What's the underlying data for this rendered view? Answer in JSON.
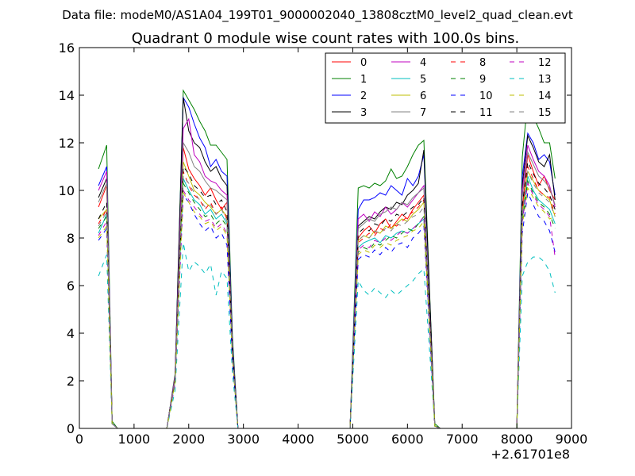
{
  "chart_data": {
    "type": "line",
    "suptitle": "Data file: modeM0/AS1A04_199T01_9000002040_13808cztM0_level2_quad_clean.evt",
    "title": "Quadrant 0 module wise count rates with 100.0s bins.",
    "xlabel": "",
    "ylabel": "",
    "x_offset_label": "+2.61701e8",
    "xlim": [
      0,
      9000
    ],
    "ylim": [
      0,
      16
    ],
    "xticks": [
      0,
      1000,
      2000,
      3000,
      4000,
      5000,
      6000,
      7000,
      8000,
      9000
    ],
    "yticks": [
      0,
      2,
      4,
      6,
      8,
      10,
      12,
      14,
      16
    ],
    "legend_position": "top-right",
    "series": [
      {
        "name": "0",
        "color": "#ff0000",
        "style": "solid",
        "values": [
          9.3,
          10.2,
          0.2,
          0,
          0,
          0,
          0,
          0,
          2.1,
          11.8,
          10.9,
          10.5,
          10.2,
          9.8,
          10.1,
          9.6,
          9.2,
          9.5,
          3.2,
          0,
          0,
          0,
          0,
          0,
          0,
          0,
          0,
          0,
          0,
          0,
          0,
          0,
          0,
          8.0,
          8.3,
          8.5,
          8.2,
          8.6,
          8.8,
          8.4,
          8.7,
          9.0,
          8.8,
          9.2,
          9.5,
          9.8,
          4.8,
          0.1,
          0,
          0,
          0,
          0,
          0,
          0,
          0,
          9.2,
          11.5,
          10.8,
          10.2,
          10.6,
          10.0,
          9.6
        ]
      },
      {
        "name": "1",
        "color": "#008000",
        "style": "solid",
        "values": [
          10.9,
          11.9,
          0.3,
          0,
          0,
          0,
          0,
          0,
          2.3,
          14.2,
          13.8,
          13.4,
          12.9,
          12.5,
          11.9,
          11.9,
          11.6,
          11.3,
          3.8,
          0,
          0,
          0,
          0,
          0,
          0,
          0,
          0,
          0,
          0,
          0,
          0,
          0,
          0,
          10.1,
          10.2,
          10.1,
          10.3,
          10.2,
          10.4,
          10.9,
          10.5,
          10.6,
          11.0,
          11.5,
          11.9,
          12.1,
          6.0,
          0.2,
          0,
          0,
          0,
          0,
          0,
          0,
          0,
          11.4,
          13.8,
          13.1,
          12.6,
          12.0,
          12.0,
          10.5
        ]
      },
      {
        "name": "2",
        "color": "#0000ff",
        "style": "solid",
        "values": [
          10.2,
          11.0,
          0.2,
          0,
          0,
          0,
          0,
          0,
          2.2,
          13.9,
          13.5,
          12.8,
          12.2,
          11.8,
          11.0,
          11.3,
          10.8,
          10.6,
          3.6,
          0,
          0,
          0,
          0,
          0,
          0,
          0,
          0,
          0,
          0,
          0,
          0,
          0,
          0,
          9.2,
          9.6,
          9.6,
          9.7,
          9.9,
          9.8,
          10.2,
          10.0,
          9.8,
          10.5,
          10.2,
          10.6,
          11.5,
          5.8,
          0.1,
          0,
          0,
          0,
          0,
          0,
          0,
          0,
          10.6,
          12.4,
          12.0,
          11.3,
          11.5,
          11.2,
          9.8
        ]
      },
      {
        "name": "3",
        "color": "#000000",
        "style": "solid",
        "values": [
          9.7,
          10.5,
          0.2,
          0,
          0,
          0,
          0,
          0,
          2.2,
          13.9,
          12.5,
          12.0,
          11.8,
          11.2,
          10.8,
          11.0,
          10.5,
          10.2,
          3.5,
          0,
          0,
          0,
          0,
          0,
          0,
          0,
          0,
          0,
          0,
          0,
          0,
          0,
          0,
          8.5,
          8.7,
          8.9,
          8.8,
          9.1,
          9.3,
          9.2,
          9.5,
          9.4,
          9.8,
          10.0,
          10.3,
          11.7,
          5.9,
          0.1,
          0,
          0,
          0,
          0,
          0,
          0,
          0,
          10.2,
          12.3,
          11.8,
          11.2,
          11.0,
          11.5,
          9.6
        ]
      },
      {
        "name": "4",
        "color": "#bf00bf",
        "style": "solid",
        "values": [
          10.0,
          10.8,
          0.2,
          0,
          0,
          0,
          0,
          0,
          2.2,
          12.6,
          13.0,
          11.5,
          11.2,
          10.6,
          10.4,
          10.3,
          10.0,
          9.8,
          3.3,
          0,
          0,
          0,
          0,
          0,
          0,
          0,
          0,
          0,
          0,
          0,
          0,
          0,
          0,
          8.8,
          9.0,
          8.7,
          9.1,
          8.9,
          9.3,
          9.0,
          9.2,
          9.5,
          9.3,
          9.6,
          9.9,
          10.2,
          5.1,
          0.1,
          0,
          0,
          0,
          0,
          0,
          0,
          0,
          10.0,
          11.9,
          11.3,
          10.8,
          10.6,
          10.2,
          9.3
        ]
      },
      {
        "name": "5",
        "color": "#00bfbf",
        "style": "solid",
        "values": [
          8.2,
          9.0,
          0.2,
          0,
          0,
          0,
          0,
          0,
          2.0,
          10.5,
          10.0,
          9.6,
          9.4,
          9.0,
          9.2,
          8.8,
          9.0,
          8.6,
          3.0,
          0,
          0,
          0,
          0,
          0,
          0,
          0,
          0,
          0,
          0,
          0,
          0,
          0,
          0,
          7.6,
          7.8,
          7.9,
          8.0,
          7.8,
          8.1,
          8.0,
          8.2,
          8.3,
          8.2,
          8.4,
          8.6,
          8.8,
          4.4,
          0.1,
          0,
          0,
          0,
          0,
          0,
          0,
          0,
          8.8,
          10.6,
          10.0,
          9.6,
          9.4,
          9.2,
          8.6
        ]
      },
      {
        "name": "6",
        "color": "#bfbf00",
        "style": "solid",
        "values": [
          8.8,
          9.2,
          0.2,
          0,
          0,
          0,
          0,
          0,
          2.0,
          11.2,
          10.6,
          10.0,
          9.8,
          9.5,
          9.3,
          9.0,
          9.2,
          8.9,
          3.1,
          0,
          0,
          0,
          0,
          0,
          0,
          0,
          0,
          0,
          0,
          0,
          0,
          0,
          0,
          7.9,
          8.1,
          8.0,
          8.3,
          8.2,
          8.5,
          8.4,
          8.6,
          8.8,
          8.7,
          9.0,
          9.2,
          9.5,
          4.7,
          0.1,
          0,
          0,
          0,
          0,
          0,
          0,
          0,
          9.0,
          10.8,
          10.4,
          10.0,
          9.8,
          9.6,
          8.9
        ]
      },
      {
        "name": "7",
        "color": "#808080",
        "style": "solid",
        "values": [
          9.5,
          10.3,
          0.2,
          0,
          0,
          0,
          0,
          0,
          2.1,
          12.0,
          11.6,
          11.0,
          10.8,
          10.4,
          10.1,
          10.0,
          9.8,
          9.6,
          3.3,
          0,
          0,
          0,
          0,
          0,
          0,
          0,
          0,
          0,
          0,
          0,
          0,
          0,
          0,
          8.4,
          8.6,
          8.8,
          8.7,
          9.0,
          9.1,
          9.3,
          9.2,
          9.5,
          9.4,
          9.7,
          9.9,
          10.1,
          5.0,
          0.1,
          0,
          0,
          0,
          0,
          0,
          0,
          0,
          9.7,
          11.6,
          11.1,
          10.6,
          10.4,
          10.1,
          9.4
        ]
      },
      {
        "name": "8",
        "color": "#ff0000",
        "style": "dashed",
        "values": [
          8.6,
          9.2,
          0.2,
          0,
          0,
          0,
          0,
          0,
          2.0,
          10.8,
          10.2,
          9.8,
          9.6,
          9.2,
          9.5,
          9.0,
          9.3,
          8.8,
          3.1,
          0,
          0,
          0,
          0,
          0,
          0,
          0,
          0,
          0,
          0,
          0,
          0,
          0,
          0,
          7.8,
          8.0,
          8.2,
          8.1,
          8.4,
          8.3,
          8.6,
          8.5,
          8.7,
          8.9,
          9.1,
          9.3,
          9.6,
          4.8,
          0.1,
          0,
          0,
          0,
          0,
          0,
          0,
          0,
          9.1,
          11.0,
          10.5,
          10.0,
          9.8,
          9.7,
          9.0
        ]
      },
      {
        "name": "9",
        "color": "#008000",
        "style": "dashed",
        "values": [
          8.4,
          8.9,
          0.2,
          0,
          0,
          0,
          0,
          0,
          2.0,
          10.3,
          9.9,
          9.5,
          9.2,
          8.9,
          9.0,
          8.6,
          8.8,
          8.5,
          3.0,
          0,
          0,
          0,
          0,
          0,
          0,
          0,
          0,
          0,
          0,
          0,
          0,
          0,
          0,
          7.4,
          7.6,
          7.5,
          7.8,
          7.7,
          7.9,
          8.1,
          8.0,
          8.2,
          8.4,
          8.3,
          8.6,
          8.9,
          4.4,
          0.1,
          0,
          0,
          0,
          0,
          0,
          0,
          0,
          8.6,
          10.4,
          9.9,
          9.5,
          9.3,
          9.0,
          8.4
        ]
      },
      {
        "name": "10",
        "color": "#0000ff",
        "style": "dashed",
        "values": [
          7.9,
          8.4,
          0.2,
          0,
          0,
          0,
          0,
          0,
          1.9,
          9.8,
          9.5,
          9.0,
          8.6,
          8.3,
          8.5,
          8.0,
          8.2,
          7.7,
          2.8,
          0,
          0,
          0,
          0,
          0,
          0,
          0,
          0,
          0,
          0,
          0,
          0,
          0,
          0,
          7.1,
          7.3,
          7.2,
          7.5,
          7.3,
          7.6,
          7.4,
          7.7,
          7.8,
          7.6,
          8.0,
          8.2,
          8.5,
          4.2,
          0.1,
          0,
          0,
          0,
          0,
          0,
          0,
          0,
          8.2,
          9.9,
          9.4,
          8.9,
          8.7,
          8.3,
          7.4
        ]
      },
      {
        "name": "11",
        "color": "#000000",
        "style": "dashed",
        "values": [
          8.8,
          9.5,
          0.2,
          0,
          0,
          0,
          0,
          0,
          2.0,
          11.0,
          10.7,
          10.2,
          10.0,
          9.7,
          9.8,
          9.4,
          9.6,
          9.1,
          3.2,
          0,
          0,
          0,
          0,
          0,
          0,
          0,
          0,
          0,
          0,
          0,
          0,
          0,
          0,
          8.2,
          8.4,
          8.3,
          8.6,
          8.5,
          8.8,
          8.7,
          9.0,
          8.9,
          9.1,
          9.3,
          9.4,
          9.7,
          4.9,
          0.1,
          0,
          0,
          0,
          0,
          0,
          0,
          0,
          9.4,
          11.2,
          10.7,
          10.3,
          10.1,
          9.8,
          9.2
        ]
      },
      {
        "name": "12",
        "color": "#bf00bf",
        "style": "dashed",
        "values": [
          8.1,
          8.7,
          0.2,
          0,
          0,
          0,
          0,
          0,
          1.9,
          10.0,
          9.6,
          9.3,
          9.0,
          8.7,
          8.8,
          8.4,
          8.6,
          8.2,
          2.9,
          0,
          0,
          0,
          0,
          0,
          0,
          0,
          0,
          0,
          0,
          0,
          0,
          0,
          0,
          7.5,
          7.7,
          7.6,
          7.9,
          7.8,
          8.0,
          7.9,
          8.1,
          8.3,
          8.2,
          8.4,
          8.6,
          8.9,
          4.5,
          0.1,
          0,
          0,
          0,
          0,
          0,
          0,
          0,
          8.7,
          10.3,
          9.8,
          9.4,
          9.2,
          8.9,
          7.2
        ]
      },
      {
        "name": "13",
        "color": "#00bfbf",
        "style": "dashed",
        "values": [
          6.4,
          7.3,
          0.2,
          0,
          0,
          0,
          0,
          0,
          1.6,
          7.8,
          6.6,
          7.0,
          6.8,
          6.5,
          6.9,
          5.6,
          6.6,
          6.3,
          2.3,
          0,
          0,
          0,
          0,
          0,
          0,
          0,
          0,
          0,
          0,
          0,
          0,
          0,
          0,
          6.2,
          5.8,
          5.6,
          5.9,
          5.7,
          5.5,
          5.8,
          5.6,
          5.8,
          6.0,
          6.2,
          6.5,
          6.7,
          3.4,
          0.1,
          0,
          0,
          0,
          0,
          0,
          0,
          0,
          6.4,
          7.0,
          7.2,
          7.2,
          7.0,
          6.6,
          5.7
        ]
      },
      {
        "name": "14",
        "color": "#bfbf00",
        "style": "dashed",
        "values": [
          8.0,
          8.5,
          0.2,
          0,
          0,
          0,
          0,
          0,
          1.9,
          9.9,
          9.5,
          9.1,
          8.9,
          8.6,
          8.7,
          8.3,
          8.5,
          8.1,
          2.9,
          0,
          0,
          0,
          0,
          0,
          0,
          0,
          0,
          0,
          0,
          0,
          0,
          0,
          0,
          7.3,
          7.5,
          7.4,
          7.7,
          7.6,
          7.8,
          7.7,
          7.9,
          8.0,
          8.1,
          8.3,
          8.4,
          8.7,
          4.4,
          0.1,
          0,
          0,
          0,
          0,
          0,
          0,
          0,
          8.5,
          10.1,
          9.7,
          9.3,
          9.1,
          8.8,
          8.9
        ]
      },
      {
        "name": "15",
        "color": "#808080",
        "style": "dashed",
        "values": [
          8.5,
          9.1,
          0.2,
          0,
          0,
          0,
          0,
          0,
          2.0,
          10.6,
          10.3,
          9.9,
          9.6,
          9.3,
          9.4,
          9.0,
          9.2,
          8.7,
          3.1,
          0,
          0,
          0,
          0,
          0,
          0,
          0,
          0,
          0,
          0,
          0,
          0,
          0,
          0,
          7.9,
          8.1,
          8.0,
          8.3,
          8.2,
          8.4,
          8.3,
          8.6,
          8.5,
          8.7,
          8.9,
          9.0,
          9.3,
          4.7,
          0.1,
          0,
          0,
          0,
          0,
          0,
          0,
          0,
          9.0,
          10.8,
          10.3,
          9.9,
          9.7,
          9.5,
          8.9
        ]
      }
    ],
    "x": [
      350,
      500,
      600,
      700,
      800,
      900,
      1000,
      1600,
      1750,
      1900,
      2000,
      2100,
      2200,
      2300,
      2400,
      2500,
      2600,
      2700,
      2800,
      2900,
      3000,
      3100,
      3200,
      3300,
      3400,
      3500,
      3600,
      3700,
      3800,
      4000,
      4500,
      4900,
      4950,
      5100,
      5200,
      5300,
      5400,
      5500,
      5600,
      5700,
      5800,
      5900,
      6000,
      6100,
      6200,
      6300,
      6400,
      6500,
      6600,
      6650,
      6700,
      6800,
      6900,
      7000,
      8000,
      8100,
      8200,
      8300,
      8400,
      8500,
      8600,
      8700
    ]
  }
}
